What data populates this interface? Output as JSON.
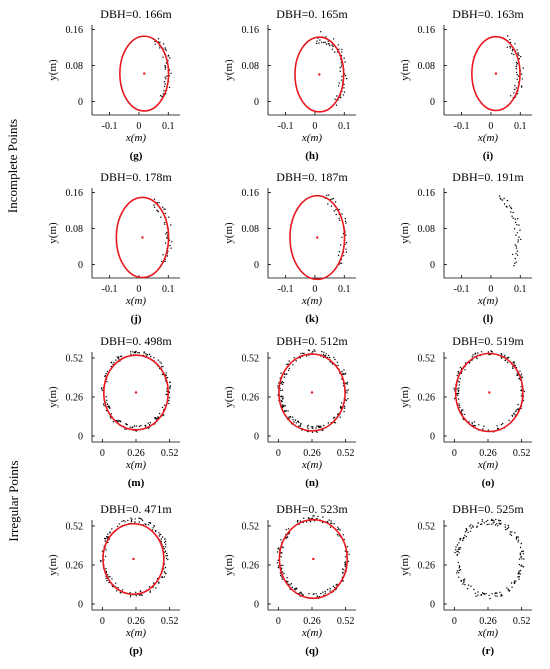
{
  "row_labels": {
    "incomplete": "Incomplete Points",
    "irregular": "Irregular Points"
  },
  "colors": {
    "circle": "#e8181e",
    "points": "#000000",
    "axis": "#000000"
  },
  "chart_data": [
    {
      "id": "g",
      "type": "scatter",
      "panel_label": "(g)",
      "title": "DBH=0. 166m",
      "xlabel": "x(m)",
      "ylabel": "y(m)",
      "xticks": [
        "-0.1",
        "0",
        "0.1"
      ],
      "yticks": [
        "0",
        "0.08",
        "0.16"
      ],
      "xlim": [
        -0.16,
        0.14
      ],
      "ylim": [
        -0.03,
        0.17
      ],
      "circle": {
        "cx": 0.018,
        "cy": 0.062,
        "r": 0.083
      },
      "points": {
        "kind": "arc",
        "cx": 0.018,
        "cy": 0.062,
        "r": 0.083,
        "from": -45,
        "to": 65,
        "spread": 0.012,
        "n": 45
      }
    },
    {
      "id": "h",
      "type": "scatter",
      "panel_label": "(h)",
      "title": "DBH=0. 165m",
      "xlabel": "x(m)",
      "ylabel": "y(m)",
      "xticks": [
        "-0.1",
        "0",
        "0.1"
      ],
      "yticks": [
        "0",
        "0.08",
        "0.16"
      ],
      "xlim": [
        -0.16,
        0.14
      ],
      "ylim": [
        -0.03,
        0.17
      ],
      "circle": {
        "cx": 0.015,
        "cy": 0.06,
        "r": 0.083
      },
      "points": {
        "kind": "arc",
        "cx": 0.015,
        "cy": 0.06,
        "r": 0.083,
        "from": -50,
        "to": 100,
        "spread": 0.014,
        "n": 60
      }
    },
    {
      "id": "i",
      "type": "scatter",
      "panel_label": "(i)",
      "title": "DBH=0. 163m",
      "xlabel": "x(m)",
      "ylabel": "y(m)",
      "xticks": [
        "-0.1",
        "0",
        "0.1"
      ],
      "yticks": [
        "0",
        "0.08",
        "0.16"
      ],
      "xlim": [
        -0.16,
        0.14
      ],
      "ylim": [
        -0.03,
        0.17
      ],
      "circle": {
        "cx": 0.017,
        "cy": 0.062,
        "r": 0.082
      },
      "points": {
        "kind": "arc",
        "cx": 0.017,
        "cy": 0.062,
        "r": 0.082,
        "from": -45,
        "to": 65,
        "spread": 0.012,
        "n": 45
      }
    },
    {
      "id": "j",
      "type": "scatter",
      "panel_label": "(j)",
      "title": "DBH=0. 178m",
      "xlabel": "x(m)",
      "ylabel": "y(m)",
      "xticks": [
        "-0.1",
        "0",
        "0.1"
      ],
      "yticks": [
        "0",
        "0.08",
        "0.16"
      ],
      "xlim": [
        -0.16,
        0.14
      ],
      "ylim": [
        -0.03,
        0.17
      ],
      "circle": {
        "cx": 0.012,
        "cy": 0.06,
        "r": 0.089
      },
      "points": {
        "kind": "arc",
        "cx": 0.012,
        "cy": 0.06,
        "r": 0.089,
        "from": -40,
        "to": 65,
        "spread": 0.012,
        "n": 42
      }
    },
    {
      "id": "k",
      "type": "scatter",
      "panel_label": "(k)",
      "title": "DBH=0. 187m",
      "xlabel": "x(m)",
      "ylabel": "y(m)",
      "xticks": [
        "-0.1",
        "0",
        "0.1"
      ],
      "yticks": [
        "0",
        "0.08",
        "0.16"
      ],
      "xlim": [
        -0.16,
        0.14
      ],
      "ylim": [
        -0.03,
        0.17
      ],
      "circle": {
        "cx": 0.008,
        "cy": 0.06,
        "r": 0.093
      },
      "points": {
        "kind": "arc",
        "cx": 0.008,
        "cy": 0.06,
        "r": 0.093,
        "from": -40,
        "to": 75,
        "spread": 0.012,
        "n": 42
      }
    },
    {
      "id": "l",
      "type": "scatter",
      "panel_label": "(l)",
      "title": "DBH=0. 191m",
      "xlabel": "x(m)",
      "ylabel": "y(m)",
      "xticks": [
        "-0.1",
        "0",
        "0.1"
      ],
      "yticks": [
        "0",
        "0.08",
        "0.16"
      ],
      "xlim": [
        -0.16,
        0.14
      ],
      "ylim": [
        -0.03,
        0.17
      ],
      "points": {
        "kind": "arc",
        "cx": 0.0,
        "cy": 0.06,
        "r": 0.093,
        "from": -40,
        "to": 75,
        "spread": 0.01,
        "n": 40
      }
    },
    {
      "id": "m",
      "type": "scatter",
      "panel_label": "(m)",
      "title": "DBH=0. 498m",
      "xlabel": "x(m)",
      "ylabel": "y(m)",
      "xticks": [
        "0",
        "0.26",
        "0.52"
      ],
      "yticks": [
        "0",
        "0.26",
        "0.52"
      ],
      "xlim": [
        -0.08,
        0.6
      ],
      "ylim": [
        -0.04,
        0.56
      ],
      "circle": {
        "cx": 0.26,
        "cy": 0.29,
        "r": 0.249
      },
      "points": {
        "kind": "ring",
        "cx": 0.26,
        "cy": 0.3,
        "r": 0.25,
        "spread": 0.02,
        "n": 170
      }
    },
    {
      "id": "n",
      "type": "scatter",
      "panel_label": "(n)",
      "title": "DBH=0. 512m",
      "xlabel": "x(m)",
      "ylabel": "y(m)",
      "xticks": [
        "0",
        "0.26",
        "0.52"
      ],
      "yticks": [
        "0",
        "0.26",
        "0.52"
      ],
      "xlim": [
        -0.08,
        0.6
      ],
      "ylim": [
        -0.04,
        0.56
      ],
      "circle": {
        "cx": 0.26,
        "cy": 0.29,
        "r": 0.256
      },
      "points": {
        "kind": "ring",
        "cx": 0.27,
        "cy": 0.3,
        "r": 0.255,
        "spread": 0.022,
        "n": 200
      }
    },
    {
      "id": "o",
      "type": "scatter",
      "panel_label": "(o)",
      "title": "DBH=0. 519m",
      "xlabel": "x(m)",
      "ylabel": "y(m)",
      "xticks": [
        "0",
        "0.26",
        "0.52"
      ],
      "yticks": [
        "0",
        "0.26",
        "0.52"
      ],
      "xlim": [
        -0.08,
        0.6
      ],
      "ylim": [
        -0.04,
        0.56
      ],
      "circle": {
        "cx": 0.27,
        "cy": 0.29,
        "r": 0.26
      },
      "points": {
        "kind": "ring",
        "cx": 0.27,
        "cy": 0.3,
        "r": 0.255,
        "spread": 0.02,
        "n": 170
      }
    },
    {
      "id": "p",
      "type": "scatter",
      "panel_label": "(p)",
      "title": "DBH=0. 471m",
      "xlabel": "x(m)",
      "ylabel": "y(m)",
      "xticks": [
        "0",
        "0.26",
        "0.52"
      ],
      "yticks": [
        "0",
        "0.26",
        "0.52"
      ],
      "xlim": [
        -0.08,
        0.6
      ],
      "ylim": [
        -0.04,
        0.56
      ],
      "circle": {
        "cx": 0.24,
        "cy": 0.3,
        "r": 0.235
      },
      "points": {
        "kind": "ring",
        "cx": 0.25,
        "cy": 0.31,
        "r": 0.245,
        "spread": 0.02,
        "n": 160
      }
    },
    {
      "id": "q",
      "type": "scatter",
      "panel_label": "(q)",
      "title": "DBH=0. 523m",
      "xlabel": "x(m)",
      "ylabel": "y(m)",
      "xticks": [
        "0",
        "0.26",
        "0.52"
      ],
      "yticks": [
        "0",
        "0.26",
        "0.52"
      ],
      "xlim": [
        -0.08,
        0.6
      ],
      "ylim": [
        -0.04,
        0.56
      ],
      "circle": {
        "cx": 0.27,
        "cy": 0.3,
        "r": 0.262
      },
      "points": {
        "kind": "ring",
        "cx": 0.27,
        "cy": 0.31,
        "r": 0.26,
        "spread": 0.02,
        "n": 180
      }
    },
    {
      "id": "r",
      "type": "scatter",
      "panel_label": "(r)",
      "title": "DBH=0. 525m",
      "xlabel": "x(m)",
      "ylabel": "y(m)",
      "xticks": [
        "0",
        "0.26",
        "0.52"
      ],
      "yticks": [
        "0",
        "0.26",
        "0.52"
      ],
      "xlim": [
        -0.08,
        0.6
      ],
      "ylim": [
        -0.04,
        0.56
      ],
      "points": {
        "kind": "ring",
        "cx": 0.27,
        "cy": 0.3,
        "r": 0.25,
        "spread": 0.02,
        "n": 170
      }
    }
  ]
}
